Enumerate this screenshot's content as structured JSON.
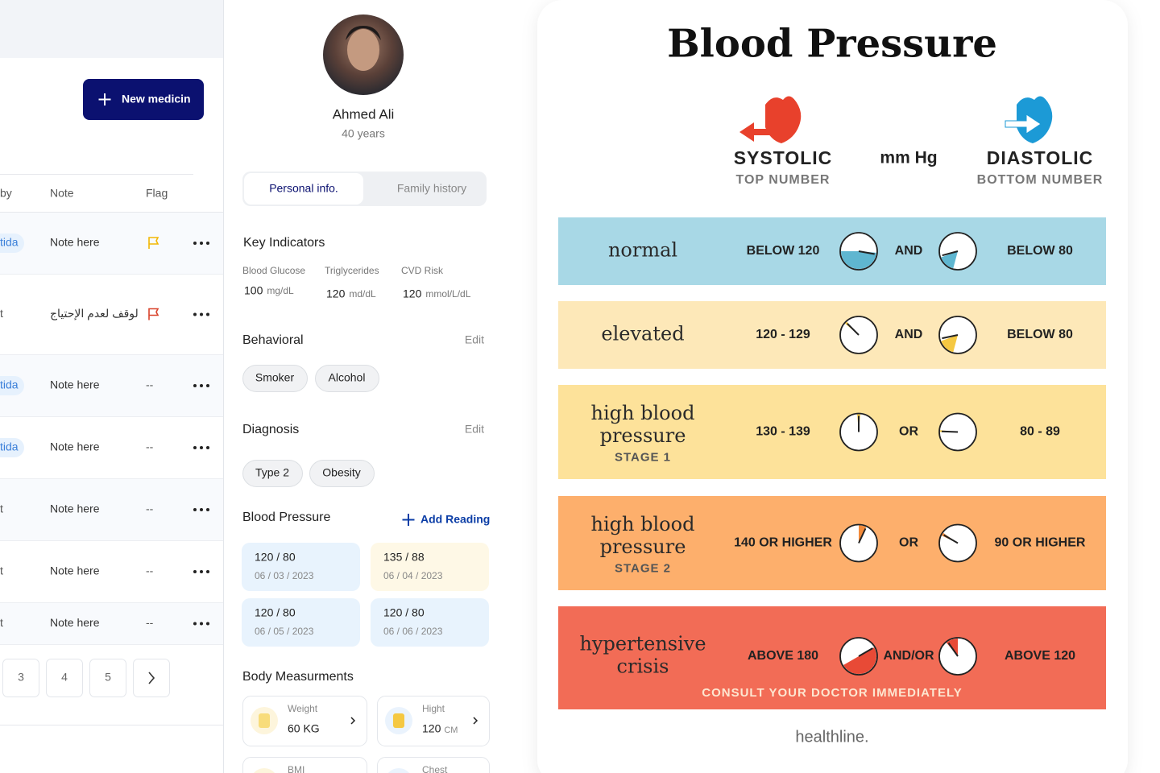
{
  "sidebar": {
    "button": "New medicin",
    "columns": [
      "by",
      "Note",
      "Flag"
    ],
    "rows": [
      {
        "tag": "tida",
        "note": "Note here"
      },
      {
        "tag": "t",
        "note": "لوقف لعدم الإحتياج"
      },
      {
        "tag": "tida",
        "note": "Note here",
        "flag": "--"
      },
      {
        "tag": "tida",
        "note": "Note here",
        "flag": "--"
      },
      {
        "tag": "t",
        "note": "Note here",
        "flag": "--"
      },
      {
        "tag": "t",
        "note": "Note here",
        "flag": "--"
      },
      {
        "tag": "t",
        "note": "Note here",
        "flag": "--"
      }
    ],
    "pagination": [
      "3",
      "4",
      "5"
    ]
  },
  "profile": {
    "name": "Ahmed Ali",
    "age": "40 years",
    "tabs": [
      "Personal info.",
      "Family history"
    ],
    "key_indicators": {
      "title": "Key Indicators",
      "items": [
        {
          "label": "Blood Glucose",
          "value": "100",
          "unit": "mg/dL"
        },
        {
          "label": "Triglycerides",
          "value": "120",
          "unit": "md/dL"
        },
        {
          "label": "CVD Risk",
          "value": "120",
          "unit": "mmol/L/dL"
        }
      ]
    },
    "behavioral": {
      "title": "Behavioral",
      "action": "Edit",
      "chips": [
        "Smoker",
        "Alcohol"
      ]
    },
    "diagnosis": {
      "title": "Diagnosis",
      "action": "Edit",
      "chips": [
        "Type 2",
        "Obesity"
      ]
    },
    "blood_pressure": {
      "title": "Blood Pressure",
      "action": "Add Reading",
      "readings": [
        {
          "reading": "120 / 80",
          "date": "06 / 03 / 2023"
        },
        {
          "reading": "135 / 88",
          "date": "06 / 04 / 2023"
        },
        {
          "reading": "120 / 80",
          "date": "06 / 05 / 2023"
        },
        {
          "reading": "120 / 80",
          "date": "06 / 06 / 2023"
        }
      ]
    },
    "body": {
      "title": "Body Measurments",
      "items": [
        {
          "label": "Weight",
          "value": "60 KG"
        },
        {
          "label": "Hight",
          "value": "120",
          "unit": "CM"
        },
        {
          "label": "BMI"
        },
        {
          "label": "Chest"
        }
      ]
    }
  },
  "infographic": {
    "title": "Blood Pressure",
    "systolic": "SYSTOLIC",
    "systolic_sub": "TOP NUMBER",
    "unit": "mm Hg",
    "diastolic": "DIASTOLIC",
    "diastolic_sub": "BOTTOM NUMBER",
    "rows": [
      {
        "category": [
          "normal"
        ],
        "systolic": "BELOW 120",
        "join": "AND",
        "diastolic": "BELOW 80"
      },
      {
        "category": [
          "elevated"
        ],
        "systolic": "120 - 129",
        "join": "AND",
        "diastolic": "BELOW 80"
      },
      {
        "category": [
          "high blood",
          "pressure"
        ],
        "stage": "STAGE 1",
        "systolic": "130 - 139",
        "join": "OR",
        "diastolic": "80 - 89"
      },
      {
        "category": [
          "high blood",
          "pressure"
        ],
        "stage": "STAGE 2",
        "systolic": "140 OR HIGHER",
        "join": "OR",
        "diastolic": "90 OR HIGHER"
      },
      {
        "category": [
          "hypertensive",
          "crisis"
        ],
        "systolic": "ABOVE 180",
        "join": "AND/OR",
        "diastolic": "ABOVE 120",
        "note": "CONSULT YOUR DOCTOR IMMEDIATELY"
      }
    ],
    "source": "healthline."
  }
}
